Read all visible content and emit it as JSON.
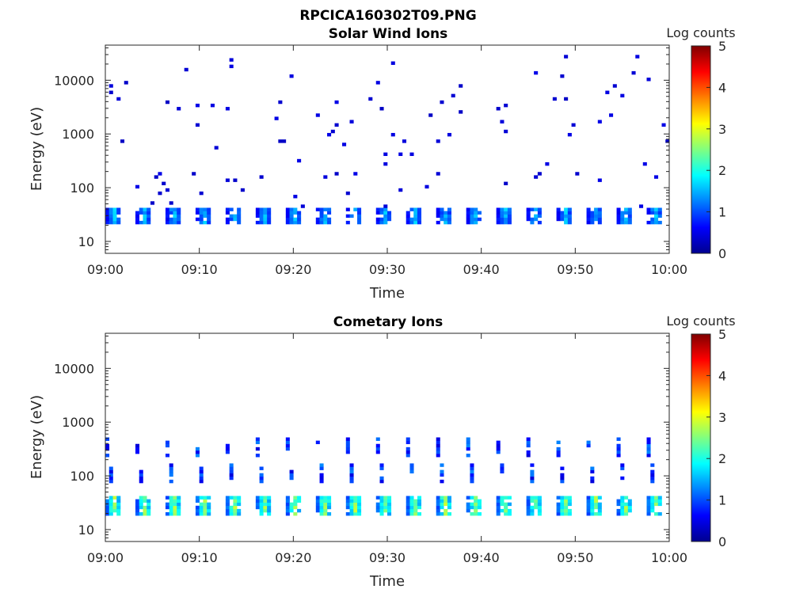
{
  "figure": {
    "title": "RPCICA160302T09.PNG"
  },
  "colormap": [
    "#00008f",
    "#0000ff",
    "#0080ff",
    "#00ffff",
    "#80ff80",
    "#ffff00",
    "#ff8000",
    "#ff0000",
    "#800000"
  ],
  "chart_data": [
    {
      "type": "heatmap",
      "title": "Solar Wind Ions",
      "xlabel": "Time",
      "ylabel": "Energy (eV)",
      "x_ticks": [
        "09:00",
        "09:10",
        "09:20",
        "09:30",
        "09:40",
        "09:50",
        "10:00"
      ],
      "xlim": [
        "09:00",
        "10:00"
      ],
      "y_scale": "log",
      "ylim": [
        6,
        45000
      ],
      "y_ticks": [
        10,
        100,
        1000,
        10000
      ],
      "y_tick_labels": [
        "10",
        "100",
        "1000",
        "10000"
      ],
      "colorbar": {
        "label": "Log counts",
        "range": [
          0,
          5
        ],
        "ticks": [
          "0",
          "1",
          "2",
          "3",
          "4",
          "5"
        ]
      },
      "features": {
        "scan_period_minutes": 3.2,
        "band": {
          "energy_min_eV": 20,
          "energy_max_eV": 40,
          "log_counts_max": 1.8
        },
        "background": {
          "energy_range_eV": [
            40,
            30000
          ],
          "log_counts": 0.3
        }
      }
    },
    {
      "type": "heatmap",
      "title": "Cometary Ions",
      "xlabel": "Time",
      "ylabel": "Energy (eV)",
      "x_ticks": [
        "09:00",
        "09:10",
        "09:20",
        "09:30",
        "09:40",
        "09:50",
        "10:00"
      ],
      "xlim": [
        "09:00",
        "10:00"
      ],
      "y_scale": "log",
      "ylim": [
        6,
        45000
      ],
      "y_ticks": [
        10,
        100,
        1000,
        10000
      ],
      "y_tick_labels": [
        "10",
        "100",
        "1000",
        "10000"
      ],
      "colorbar": {
        "label": "Log counts",
        "range": [
          0,
          5
        ],
        "ticks": [
          "0",
          "1",
          "2",
          "3",
          "4",
          "5"
        ]
      },
      "features": {
        "scan_period_minutes": 3.2,
        "band": {
          "energy_min_eV": 18,
          "energy_max_eV": 42,
          "log_counts_max": 3.0
        },
        "arcs": {
          "energy_min_eV": 40,
          "energy_max_eV": 600,
          "log_counts": 1.0
        }
      }
    }
  ]
}
